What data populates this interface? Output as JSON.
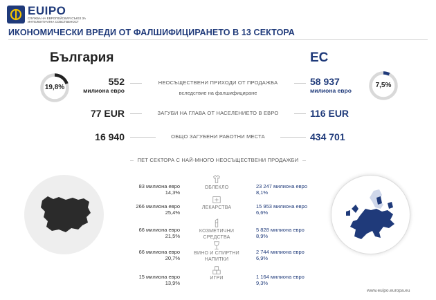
{
  "logo": {
    "name": "EUIPO",
    "subtitle": "СЛУЖБА НА ЕВРОПЕЙСКИЯ СЪЮЗ ЗА ИНТЕЛЕКТУАЛНА СОБСТВЕНОСТ"
  },
  "title": "ИКОНОМИЧЕСКИ ВРЕДИ ОТ ФАЛШИФИЦИРАНЕТО В 13 СЕКТОРА",
  "bulgaria": {
    "name": "България",
    "revenue_value": "552",
    "revenue_unit": "милиона евро",
    "share_label": "19,8%",
    "share_fraction": 0.198,
    "per_capita": "77 EUR",
    "jobs": "16 940"
  },
  "eu": {
    "name": "ЕС",
    "revenue_value": "58 937",
    "revenue_unit": "милиона евро",
    "share_label": "7,5%",
    "share_fraction": 0.075,
    "per_capita": "116 EUR",
    "jobs": "434 701"
  },
  "rows": {
    "revenue_label": "НЕОСЪЩЕСТВЕНИ ПРИХОДИ ОТ ПРОДАЖБА",
    "revenue_sub": "вследствие на фалшифициране",
    "per_capita_label": "ЗАГУБИ НА ГЛАВА ОТ НАСЕЛЕНИЕТО В ЕВРО",
    "jobs_label": "ОБЩО ЗАГУБЕНИ РАБОТНИ МЕСТА"
  },
  "sectors_heading": "ПЕТ СЕКТОРА С НАЙ-МНОГО НЕОСЪЩЕСТВЕНИ ПРОДАЖБИ",
  "sectors": [
    {
      "label": "ОБЛЕКЛО",
      "icon": "tshirt-icon",
      "bg_value": "83 милиона евро",
      "bg_pct": "14,3%",
      "eu_value": "23 247 милиона евро",
      "eu_pct": "8,1%"
    },
    {
      "label": "ЛЕКАРСТВА",
      "icon": "medicine-kit-icon",
      "bg_value": "266 милиона евро",
      "bg_pct": "25,4%",
      "eu_value": "15 953 милиона евро",
      "eu_pct": "6,6%"
    },
    {
      "label": "КОЗМЕТИЧНИ СРЕДСТВА",
      "icon": "lipstick-icon",
      "bg_value": "66 милиона евро",
      "bg_pct": "21,5%",
      "eu_value": "5 828 милиона евро",
      "eu_pct": "8,9%"
    },
    {
      "label": "ВИНО И СПИРТНИ НАПИТКИ",
      "icon": "wine-glass-icon",
      "bg_value": "66 милиона евро",
      "bg_pct": "20,7%",
      "eu_value": "2 744 милиона евро",
      "eu_pct": "6,9%"
    },
    {
      "label": "ИГРИ",
      "icon": "toy-blocks-icon",
      "bg_value": "15 милиона евро",
      "bg_pct": "13,9%",
      "eu_value": "1 164 милиона евро",
      "eu_pct": "9,3%"
    }
  ],
  "footer": "www.euipo.europa.eu",
  "colors": {
    "accent": "#1f3a7a",
    "dark": "#222222",
    "ring": "#d9d9d9"
  }
}
